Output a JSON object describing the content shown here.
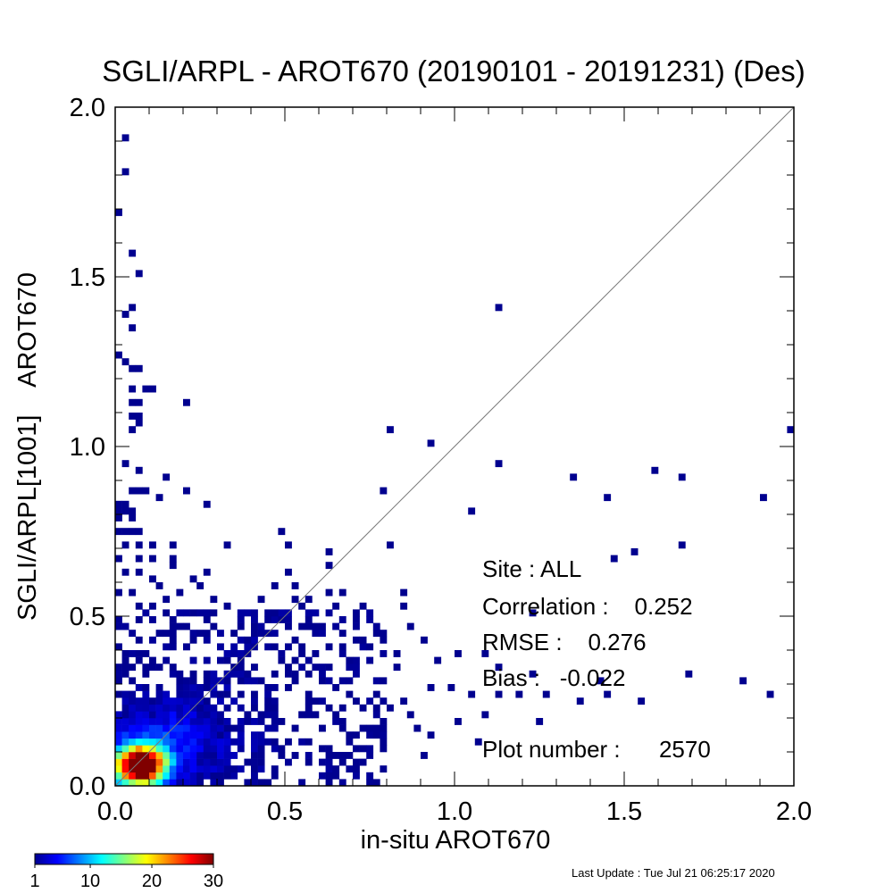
{
  "chart_data": {
    "type": "heatmap",
    "title": "SGLI/ARPL - AROT670 (20190101 - 20191231) (Des)",
    "xlabel": "in-situ AROT670",
    "ylabel": "SGLI/ARPL[1001]    AROT670",
    "xlim": [
      0.0,
      2.0
    ],
    "ylim": [
      0.0,
      2.0
    ],
    "x_ticks": [
      "0.0",
      "0.5",
      "1.0",
      "1.5",
      "2.0"
    ],
    "y_ticks": [
      "0.0",
      "0.5",
      "1.0",
      "1.5",
      "2.0"
    ],
    "bin_size": 0.02,
    "one_to_one_line": true,
    "stats": {
      "site": "Site : ALL",
      "correlation": "Correlation :    0.252",
      "rmse": "RMSE :    0.276",
      "bias": "Bias :   -0.022",
      "plot_number": "Plot number :      2570"
    },
    "colorbar": {
      "min": 1,
      "max": 30,
      "tick_labels": [
        "1",
        "10",
        "20",
        "30"
      ],
      "tick_values": [
        1,
        10,
        20,
        30
      ],
      "stops": [
        "#00008f",
        "#0000ff",
        "#0080ff",
        "#00ffff",
        "#80ff80",
        "#ffff00",
        "#ff8000",
        "#ff0000",
        "#800000"
      ]
    },
    "sparse_cells": [
      [
        0.02,
        1.89
      ],
      [
        0.02,
        1.79
      ],
      [
        0.0,
        1.67
      ],
      [
        0.04,
        1.55
      ],
      [
        0.06,
        1.49
      ],
      [
        0.04,
        1.39
      ],
      [
        0.02,
        1.37
      ],
      [
        0.04,
        1.33
      ],
      [
        0.0,
        1.25
      ],
      [
        0.02,
        1.23
      ],
      [
        0.04,
        1.21
      ],
      [
        0.06,
        1.21
      ],
      [
        0.04,
        1.17
      ],
      [
        0.08,
        1.17
      ],
      [
        0.1,
        1.17
      ],
      [
        0.04,
        1.13
      ],
      [
        0.06,
        1.13
      ],
      [
        0.04,
        1.08
      ],
      [
        0.06,
        1.08
      ],
      [
        0.06,
        1.06
      ],
      [
        0.04,
        1.04
      ],
      [
        0.2,
        1.12
      ],
      [
        0.02,
        0.94
      ],
      [
        0.06,
        0.92
      ],
      [
        0.04,
        0.86
      ],
      [
        0.06,
        0.86
      ],
      [
        0.08,
        0.86
      ],
      [
        0.14,
        0.9
      ],
      [
        0.2,
        0.86
      ],
      [
        0.12,
        0.84
      ],
      [
        0.0,
        0.82
      ],
      [
        0.02,
        0.82
      ],
      [
        0.0,
        0.8
      ],
      [
        0.02,
        0.8
      ],
      [
        0.04,
        0.8
      ],
      [
        0.0,
        0.78
      ],
      [
        0.04,
        0.78
      ],
      [
        0.26,
        0.82
      ],
      [
        0.0,
        0.74
      ],
      [
        0.02,
        0.74
      ],
      [
        0.04,
        0.74
      ],
      [
        0.06,
        0.74
      ],
      [
        0.02,
        0.7
      ],
      [
        0.06,
        0.7
      ],
      [
        0.1,
        0.7
      ],
      [
        0.16,
        0.7
      ],
      [
        0.0,
        0.66
      ],
      [
        0.06,
        0.66
      ],
      [
        0.1,
        0.66
      ],
      [
        0.16,
        0.66
      ],
      [
        0.32,
        0.7
      ],
      [
        0.02,
        0.62
      ],
      [
        0.06,
        0.62
      ],
      [
        0.16,
        0.64
      ],
      [
        0.26,
        0.62
      ],
      [
        0.1,
        0.6
      ],
      [
        0.0,
        0.56
      ],
      [
        0.04,
        0.56
      ],
      [
        0.12,
        0.58
      ],
      [
        0.22,
        0.6
      ],
      [
        0.28,
        0.54
      ],
      [
        0.06,
        0.52
      ],
      [
        0.14,
        0.54
      ],
      [
        0.24,
        0.58
      ],
      [
        0.18,
        0.56
      ],
      [
        0.48,
        0.74
      ],
      [
        0.5,
        0.7
      ],
      [
        0.62,
        0.68
      ],
      [
        0.62,
        0.64
      ],
      [
        0.5,
        0.62
      ],
      [
        0.46,
        0.58
      ],
      [
        0.52,
        0.58
      ],
      [
        0.62,
        0.56
      ],
      [
        0.56,
        0.54
      ],
      [
        0.66,
        0.56
      ],
      [
        0.32,
        0.52
      ],
      [
        0.42,
        0.54
      ],
      [
        0.52,
        0.54
      ],
      [
        0.36,
        0.5
      ],
      [
        0.46,
        0.5
      ],
      [
        0.54,
        0.52
      ],
      [
        0.64,
        0.52
      ],
      [
        0.72,
        0.52
      ],
      [
        0.84,
        0.56
      ],
      [
        0.84,
        0.52
      ],
      [
        0.78,
        0.86
      ],
      [
        0.8,
        1.04
      ],
      [
        0.92,
        1.0
      ],
      [
        0.8,
        0.7
      ],
      [
        1.04,
        0.8
      ],
      [
        1.12,
        1.39
      ],
      [
        1.12,
        0.94
      ],
      [
        1.34,
        0.9
      ],
      [
        1.44,
        0.84
      ],
      [
        1.58,
        0.92
      ],
      [
        1.66,
        0.9
      ],
      [
        1.9,
        0.84
      ],
      [
        1.98,
        1.04
      ],
      [
        1.46,
        0.66
      ],
      [
        1.52,
        0.68
      ],
      [
        1.66,
        0.7
      ],
      [
        1.22,
        0.49
      ],
      [
        1.08,
        0.38
      ],
      [
        1.12,
        0.34
      ],
      [
        1.22,
        0.32
      ],
      [
        1.42,
        0.3
      ],
      [
        1.26,
        0.26
      ],
      [
        1.36,
        0.24
      ],
      [
        1.44,
        0.26
      ],
      [
        1.54,
        0.24
      ],
      [
        1.68,
        0.32
      ],
      [
        1.84,
        0.3
      ],
      [
        1.92,
        0.25
      ],
      [
        0.44,
        0.44
      ],
      [
        0.52,
        0.42
      ],
      [
        0.58,
        0.44
      ],
      [
        0.64,
        0.46
      ],
      [
        0.7,
        0.48
      ],
      [
        0.76,
        0.44
      ],
      [
        0.86,
        0.46
      ],
      [
        0.9,
        0.42
      ],
      [
        0.94,
        0.36
      ],
      [
        1.0,
        0.38
      ],
      [
        0.82,
        0.38
      ],
      [
        0.98,
        0.28
      ],
      [
        1.04,
        0.26
      ],
      [
        1.12,
        0.26
      ],
      [
        1.18,
        0.26
      ],
      [
        0.92,
        0.28
      ],
      [
        1.08,
        0.2
      ],
      [
        1.0,
        0.18
      ],
      [
        1.24,
        0.18
      ],
      [
        0.84,
        0.24
      ],
      [
        0.72,
        0.22
      ],
      [
        0.8,
        0.22
      ],
      [
        0.76,
        0.2
      ],
      [
        0.88,
        0.16
      ],
      [
        0.92,
        0.14
      ],
      [
        0.9,
        0.08
      ],
      [
        1.06,
        0.12
      ],
      [
        0.78,
        0.1
      ],
      [
        0.62,
        0.08
      ],
      [
        0.66,
        0.06
      ],
      [
        0.64,
        0.03
      ],
      [
        0.52,
        0.08
      ],
      [
        0.5,
        0.06
      ],
      [
        0.56,
        0.06
      ],
      [
        0.46,
        0.02
      ],
      [
        0.4,
        0.03
      ],
      [
        0.38,
        0.06
      ],
      [
        0.42,
        0.12
      ],
      [
        0.48,
        0.1
      ],
      [
        0.56,
        0.12
      ],
      [
        0.68,
        0.14
      ],
      [
        0.72,
        0.1
      ],
      [
        0.74,
        0.16
      ],
      [
        0.54,
        0.2
      ],
      [
        0.64,
        0.18
      ],
      [
        0.7,
        0.24
      ],
      [
        0.6,
        0.3
      ],
      [
        0.66,
        0.3
      ],
      [
        0.56,
        0.32
      ],
      [
        0.62,
        0.34
      ],
      [
        0.48,
        0.36
      ],
      [
        0.54,
        0.38
      ],
      [
        0.66,
        0.4
      ],
      [
        0.38,
        0.42
      ],
      [
        0.4,
        0.46
      ],
      [
        0.3,
        0.44
      ],
      [
        0.36,
        0.36
      ],
      [
        0.2,
        0.46
      ],
      [
        0.22,
        0.42
      ],
      [
        0.12,
        0.44
      ],
      [
        0.16,
        0.46
      ],
      [
        0.06,
        0.48
      ],
      [
        0.02,
        0.46
      ],
      [
        0.0,
        0.4
      ],
      [
        0.06,
        0.42
      ],
      [
        0.26,
        0.48
      ],
      [
        0.78,
        0.3
      ],
      [
        0.82,
        0.34
      ],
      [
        0.68,
        0.36
      ],
      [
        0.74,
        0.4
      ],
      [
        0.18,
        0.5
      ],
      [
        0.08,
        0.5
      ],
      [
        0.1,
        0.52
      ],
      [
        0.76,
        0.26
      ],
      [
        0.86,
        0.2
      ],
      [
        0.58,
        0.24
      ],
      [
        0.62,
        0.22
      ],
      [
        0.6,
        0.16
      ],
      [
        0.5,
        0.28
      ],
      [
        0.46,
        0.32
      ],
      [
        0.44,
        0.26
      ],
      [
        0.52,
        0.3
      ],
      [
        0.34,
        0.32
      ],
      [
        0.42,
        0.3
      ]
    ]
  },
  "footer": {
    "last_update": "Last Update : Tue Jul 21 06:25:17 2020"
  }
}
